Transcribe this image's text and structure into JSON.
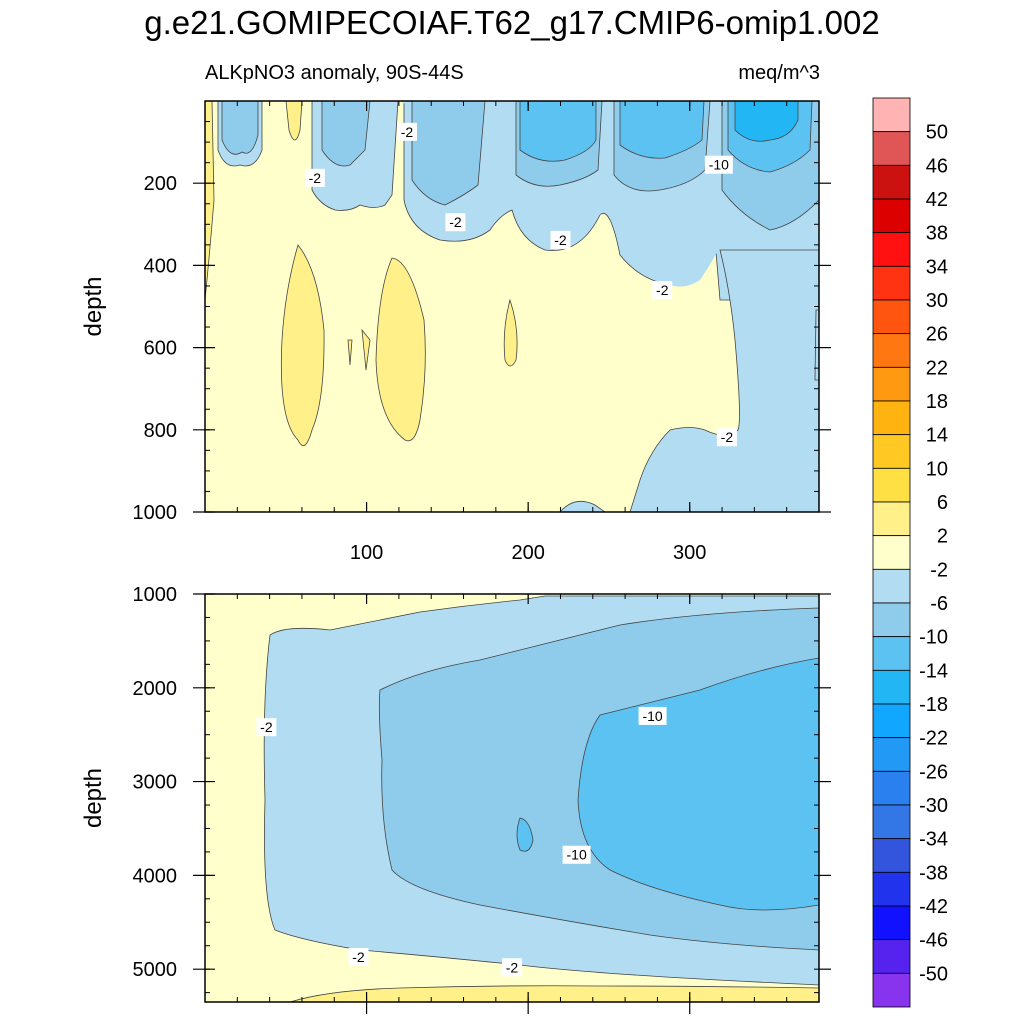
{
  "title": "g.e21.GOMIPECOIAF.T62_g17.CMIP6-omip1.002",
  "subtitle_left": "ALKpNO3 anomaly, 90S-44S",
  "subtitle_right": "meq/m^3",
  "colors": {
    "axis": "#000000",
    "contour_line": "#333333",
    "background": "#ffffff"
  },
  "chart_data": [
    {
      "type": "heatmap",
      "name": "upper-panel",
      "ylabel": "depth",
      "xlabel": "",
      "xlim": [
        0,
        380
      ],
      "ylim": [
        1000,
        0
      ],
      "x_ticks": [
        100,
        200,
        300
      ],
      "x_tick_labels": [
        "100",
        "200",
        "300"
      ],
      "y_ticks": [
        200,
        400,
        600,
        800,
        1000
      ],
      "y_tick_labels": [
        "200",
        "400",
        "600",
        "800",
        "1000"
      ],
      "contour_labels": [
        {
          "text": "-2",
          "x": 125,
          "y": 75
        },
        {
          "text": "-2",
          "x": 68,
          "y": 187
        },
        {
          "text": "-2",
          "x": 155,
          "y": 295
        },
        {
          "text": "-2",
          "x": 220,
          "y": 338
        },
        {
          "text": "-2",
          "x": 283,
          "y": 460
        },
        {
          "text": "-10",
          "x": 318,
          "y": 155
        },
        {
          "text": "-2",
          "x": 323,
          "y": 818
        }
      ]
    },
    {
      "type": "heatmap",
      "name": "lower-panel",
      "ylabel": "depth",
      "xlabel": "",
      "xlim": [
        0,
        380
      ],
      "ylim": [
        5350,
        1000
      ],
      "x_ticks": [
        100,
        200,
        300
      ],
      "x_tick_labels": [
        "",
        "",
        ""
      ],
      "y_ticks": [
        1000,
        2000,
        3000,
        4000,
        5000
      ],
      "y_tick_labels": [
        "1000",
        "2000",
        "3000",
        "4000",
        "5000"
      ],
      "contour_labels": [
        {
          "text": "-2",
          "x": 38,
          "y": 2420
        },
        {
          "text": "-10",
          "x": 277,
          "y": 2300
        },
        {
          "text": "-10",
          "x": 230,
          "y": 3780
        },
        {
          "text": "-2",
          "x": 95,
          "y": 4870
        },
        {
          "text": "-2",
          "x": 190,
          "y": 4980
        }
      ]
    }
  ],
  "colorbar": {
    "labels": [
      "50",
      "46",
      "42",
      "38",
      "34",
      "30",
      "26",
      "22",
      "18",
      "14",
      "10",
      "6",
      "2",
      "-2",
      "-6",
      "-10",
      "-14",
      "-18",
      "-22",
      "-26",
      "-30",
      "-34",
      "-38",
      "-42",
      "-46",
      "-50"
    ],
    "colors": [
      "#ffb3b3",
      "#e05555",
      "#cc1111",
      "#dd0000",
      "#ff1111",
      "#ff3311",
      "#ff5511",
      "#ff7711",
      "#ff9911",
      "#ffb311",
      "#ffc822",
      "#ffe044",
      "#fff08a",
      "#ffffcc",
      "#b2dcf2",
      "#8fccec",
      "#5cc2f2",
      "#22b6f5",
      "#11a6ff",
      "#2299f5",
      "#2a80ee",
      "#3377e6",
      "#3355dd",
      "#2233ee",
      "#1111ff",
      "#5522ee",
      "#8833ee"
    ]
  }
}
